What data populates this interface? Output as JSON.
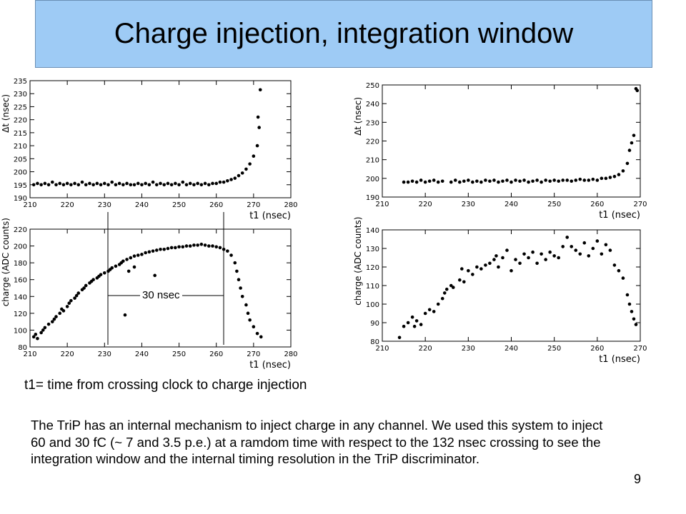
{
  "slide": {
    "title": "Charge injection, integration window",
    "caption": "t1= time from crossing clock to charge injection",
    "body": "The TriP has an internal mechanism to inject charge in any channel. We used this system to inject 60 and 30 fC (~ 7 and 3.5 p.e.) at a ramdom time with respect to the 132 nsec crossing to see the integration window and the internal timing resolution in the TriP discriminator.",
    "page_number": "9",
    "window_label": "30 nsec"
  },
  "chart_data": [
    {
      "id": "top-left",
      "type": "scatter",
      "title": "",
      "xlabel": "t1 (nsec)",
      "ylabel": "Δt (nsec)",
      "xlim": [
        210,
        280
      ],
      "ylim": [
        190,
        235
      ],
      "xticks": [
        210,
        220,
        230,
        240,
        250,
        260,
        270,
        280
      ],
      "yticks": [
        190,
        195,
        200,
        205,
        210,
        215,
        220,
        225,
        230,
        235
      ],
      "points": [
        [
          211,
          195
        ],
        [
          212,
          195.5
        ],
        [
          213,
          195
        ],
        [
          214,
          195.5
        ],
        [
          215,
          195
        ],
        [
          216,
          196
        ],
        [
          217,
          195
        ],
        [
          218,
          195.5
        ],
        [
          219,
          195
        ],
        [
          220,
          195.5
        ],
        [
          221,
          195
        ],
        [
          222,
          195.5
        ],
        [
          223,
          195
        ],
        [
          224,
          196
        ],
        [
          225,
          195
        ],
        [
          226,
          195.5
        ],
        [
          227,
          195
        ],
        [
          228,
          195.5
        ],
        [
          229,
          195
        ],
        [
          230,
          195.5
        ],
        [
          231,
          195
        ],
        [
          232,
          196
        ],
        [
          233,
          195
        ],
        [
          234,
          195.5
        ],
        [
          235,
          195
        ],
        [
          236,
          195.5
        ],
        [
          237,
          195
        ],
        [
          238,
          195
        ],
        [
          239,
          195.5
        ],
        [
          240,
          195
        ],
        [
          241,
          195.5
        ],
        [
          242,
          195
        ],
        [
          243,
          196
        ],
        [
          244,
          195
        ],
        [
          245,
          195.5
        ],
        [
          246,
          195
        ],
        [
          247,
          195.5
        ],
        [
          248,
          195
        ],
        [
          249,
          195.5
        ],
        [
          250,
          195
        ],
        [
          251,
          196
        ],
        [
          252,
          195
        ],
        [
          253,
          195.5
        ],
        [
          254,
          195
        ],
        [
          255,
          195.5
        ],
        [
          256,
          195
        ],
        [
          257,
          195.5
        ],
        [
          258,
          195
        ],
        [
          259,
          195.5
        ],
        [
          260,
          195.5
        ],
        [
          261,
          196
        ],
        [
          262,
          196
        ],
        [
          263,
          196.5
        ],
        [
          264,
          197
        ],
        [
          265,
          197.5
        ],
        [
          266,
          198.5
        ],
        [
          267,
          199.5
        ],
        [
          268,
          201
        ],
        [
          269,
          203
        ],
        [
          270,
          206
        ],
        [
          271,
          210
        ],
        [
          271.5,
          217
        ],
        [
          271.2,
          221
        ],
        [
          271.8,
          231.5
        ]
      ]
    },
    {
      "id": "top-right",
      "type": "scatter",
      "title": "",
      "xlabel": "t1 (nsec)",
      "ylabel": "Δt (nsec)",
      "xlim": [
        210,
        270
      ],
      "ylim": [
        190,
        250
      ],
      "xticks": [
        210,
        220,
        230,
        240,
        250,
        260,
        270
      ],
      "yticks": [
        190,
        200,
        210,
        220,
        230,
        240,
        250
      ],
      "points": [
        [
          215,
          198
        ],
        [
          216,
          198
        ],
        [
          217,
          198.5
        ],
        [
          218,
          198
        ],
        [
          219,
          199
        ],
        [
          220,
          198
        ],
        [
          221,
          198.5
        ],
        [
          222,
          199
        ],
        [
          223,
          198
        ],
        [
          224,
          198.5
        ],
        [
          226,
          198
        ],
        [
          227,
          199
        ],
        [
          228,
          198
        ],
        [
          229,
          198.5
        ],
        [
          230,
          199
        ],
        [
          231,
          198
        ],
        [
          232,
          198.5
        ],
        [
          233,
          198
        ],
        [
          234,
          199
        ],
        [
          235,
          198.5
        ],
        [
          236,
          199
        ],
        [
          237,
          198
        ],
        [
          238,
          198.5
        ],
        [
          239,
          199
        ],
        [
          240,
          198
        ],
        [
          241,
          199
        ],
        [
          242,
          198.5
        ],
        [
          243,
          199
        ],
        [
          244,
          198
        ],
        [
          245,
          198.5
        ],
        [
          246,
          199
        ],
        [
          247,
          198
        ],
        [
          248,
          199
        ],
        [
          249,
          198.5
        ],
        [
          250,
          199
        ],
        [
          251,
          198.5
        ],
        [
          252,
          199
        ],
        [
          253,
          199
        ],
        [
          254,
          198.5
        ],
        [
          255,
          199
        ],
        [
          256,
          199.5
        ],
        [
          257,
          199
        ],
        [
          258,
          199
        ],
        [
          259,
          199.5
        ],
        [
          260,
          199
        ],
        [
          261,
          200
        ],
        [
          262,
          200
        ],
        [
          263,
          200.5
        ],
        [
          264,
          201
        ],
        [
          265,
          202
        ],
        [
          266,
          204
        ],
        [
          267,
          208
        ],
        [
          267.5,
          215
        ],
        [
          268,
          219
        ],
        [
          268.5,
          223
        ],
        [
          269,
          248
        ],
        [
          269.3,
          247
        ]
      ]
    },
    {
      "id": "bottom-left",
      "type": "scatter",
      "title": "",
      "xlabel": "t1 (nsec)",
      "ylabel": "charge (ADC counts)",
      "xlim": [
        210,
        280
      ],
      "ylim": [
        80,
        220
      ],
      "xticks": [
        210,
        220,
        230,
        240,
        250,
        260,
        270,
        280
      ],
      "yticks": [
        80,
        100,
        120,
        140,
        160,
        180,
        200,
        220
      ],
      "points": [
        [
          211,
          92
        ],
        [
          211.5,
          95
        ],
        [
          212,
          90
        ],
        [
          213,
          97
        ],
        [
          213.5,
          100
        ],
        [
          214,
          103
        ],
        [
          215,
          107
        ],
        [
          216,
          110
        ],
        [
          216.5,
          113
        ],
        [
          217,
          116
        ],
        [
          218,
          120
        ],
        [
          218.5,
          125
        ],
        [
          219,
          123
        ],
        [
          220,
          128
        ],
        [
          220.5,
          132
        ],
        [
          221,
          135
        ],
        [
          222,
          138
        ],
        [
          222.5,
          141
        ],
        [
          223,
          144
        ],
        [
          224,
          148
        ],
        [
          224.5,
          150
        ],
        [
          225,
          153
        ],
        [
          226,
          156
        ],
        [
          226.5,
          158
        ],
        [
          227,
          160
        ],
        [
          228,
          162
        ],
        [
          228.5,
          164
        ],
        [
          229,
          166
        ],
        [
          230,
          168
        ],
        [
          231,
          170
        ],
        [
          231.5,
          172
        ],
        [
          232,
          174
        ],
        [
          233,
          176
        ],
        [
          234,
          178
        ],
        [
          234.5,
          180
        ],
        [
          235,
          182
        ],
        [
          236,
          184
        ],
        [
          237,
          186
        ],
        [
          238,
          188
        ],
        [
          239,
          189
        ],
        [
          240,
          190
        ],
        [
          241,
          192
        ],
        [
          242,
          193
        ],
        [
          243,
          194
        ],
        [
          244,
          195
        ],
        [
          245,
          196
        ],
        [
          246,
          196
        ],
        [
          247,
          197
        ],
        [
          248,
          198
        ],
        [
          249,
          198
        ],
        [
          250,
          199
        ],
        [
          251,
          199
        ],
        [
          252,
          200
        ],
        [
          253,
          200
        ],
        [
          254,
          201
        ],
        [
          255,
          201
        ],
        [
          256,
          202
        ],
        [
          257,
          201
        ],
        [
          258,
          200
        ],
        [
          259,
          200
        ],
        [
          260,
          199
        ],
        [
          261,
          198
        ],
        [
          262,
          196
        ],
        [
          263,
          194
        ],
        [
          264,
          189
        ],
        [
          265,
          180
        ],
        [
          265.5,
          170
        ],
        [
          266,
          160
        ],
        [
          266.5,
          150
        ],
        [
          267,
          140
        ],
        [
          268,
          130
        ],
        [
          268.5,
          120
        ],
        [
          269,
          112
        ],
        [
          270,
          104
        ],
        [
          271,
          96
        ],
        [
          272,
          92
        ],
        [
          235.5,
          118
        ],
        [
          243.5,
          165
        ],
        [
          236.5,
          170
        ],
        [
          238,
          175
        ]
      ]
    },
    {
      "id": "bottom-right",
      "type": "scatter",
      "title": "",
      "xlabel": "t1 (nsec)",
      "ylabel": "charge (ADC counts)",
      "xlim": [
        210,
        270
      ],
      "ylim": [
        80,
        140
      ],
      "xticks": [
        210,
        220,
        230,
        240,
        250,
        260,
        270
      ],
      "yticks": [
        80,
        90,
        100,
        110,
        120,
        130,
        140
      ],
      "points": [
        [
          214,
          82
        ],
        [
          215,
          88
        ],
        [
          216,
          90
        ],
        [
          217,
          93
        ],
        [
          217.5,
          88
        ],
        [
          218,
          91
        ],
        [
          219,
          89
        ],
        [
          220,
          95
        ],
        [
          221,
          97
        ],
        [
          222,
          96
        ],
        [
          223,
          100
        ],
        [
          224,
          103
        ],
        [
          224.5,
          106
        ],
        [
          225,
          108
        ],
        [
          226,
          110
        ],
        [
          226.5,
          109
        ],
        [
          228,
          113
        ],
        [
          228.5,
          119
        ],
        [
          229,
          112
        ],
        [
          230,
          118
        ],
        [
          231,
          116
        ],
        [
          232,
          120
        ],
        [
          233,
          119
        ],
        [
          234,
          121
        ],
        [
          235,
          122
        ],
        [
          236,
          124
        ],
        [
          236.5,
          126
        ],
        [
          237,
          120
        ],
        [
          238,
          125
        ],
        [
          239,
          129
        ],
        [
          240,
          118
        ],
        [
          241,
          124
        ],
        [
          242,
          122
        ],
        [
          243,
          127
        ],
        [
          244,
          125
        ],
        [
          245,
          128
        ],
        [
          246,
          122
        ],
        [
          247,
          127
        ],
        [
          248,
          124
        ],
        [
          249,
          128
        ],
        [
          250,
          126
        ],
        [
          251,
          125
        ],
        [
          252,
          131
        ],
        [
          253,
          136
        ],
        [
          254,
          131
        ],
        [
          255,
          129
        ],
        [
          256,
          127
        ],
        [
          257,
          133
        ],
        [
          258,
          126
        ],
        [
          259,
          130
        ],
        [
          260,
          134
        ],
        [
          261,
          127
        ],
        [
          262,
          132
        ],
        [
          263,
          129
        ],
        [
          264,
          121
        ],
        [
          265,
          118
        ],
        [
          266,
          114
        ],
        [
          267,
          105
        ],
        [
          267.5,
          100
        ],
        [
          268,
          96
        ],
        [
          268.5,
          92
        ],
        [
          269,
          89
        ]
      ]
    }
  ]
}
